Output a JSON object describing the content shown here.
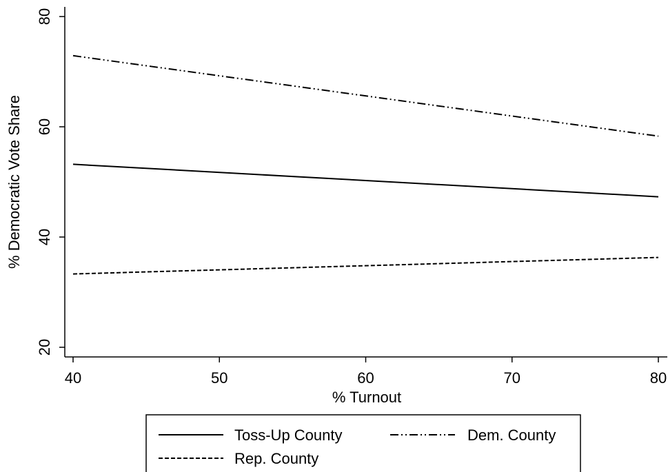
{
  "chart_data": {
    "type": "line",
    "xlabel": "% Turnout",
    "ylabel": "% Democratic Vote Share",
    "xlim": [
      40,
      80
    ],
    "ylim": [
      20,
      80
    ],
    "x_ticks": [
      "40",
      "50",
      "60",
      "70",
      "80"
    ],
    "y_ticks": [
      "20",
      "40",
      "60",
      "80"
    ],
    "grid": false,
    "legend_position": "bottom",
    "series": [
      {
        "name": "Toss-Up County",
        "style": "solid",
        "x": [
          40,
          80
        ],
        "y": [
          53.2,
          47.3
        ]
      },
      {
        "name": "Dem. County",
        "style": "dash-dot-dot",
        "x": [
          40,
          80
        ],
        "y": [
          72.9,
          58.3
        ]
      },
      {
        "name": "Rep. County",
        "style": "dashed",
        "x": [
          40,
          80
        ],
        "y": [
          33.3,
          36.3
        ]
      }
    ]
  }
}
